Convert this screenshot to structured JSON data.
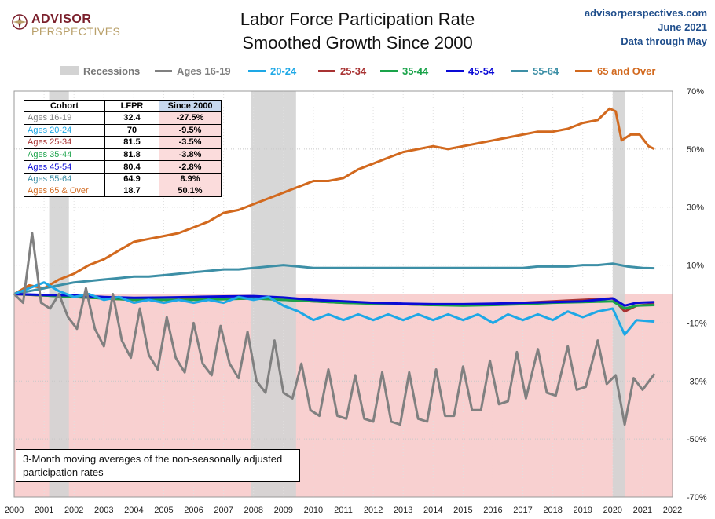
{
  "branding": {
    "logo_line1": "ADVISOR",
    "logo_line2": "PERSPECTIVES"
  },
  "header": {
    "title_line1": "Labor Force Participation Rate",
    "title_line2": "Smoothed Growth Since 2000",
    "site": "advisorperspectives.com",
    "date": "June 2021",
    "data_through": "Data through May"
  },
  "legend": [
    {
      "label": "Recessions",
      "color": "#d3d3d3",
      "kind": "band"
    },
    {
      "label": "Ages 16-19",
      "color": "#808080",
      "kind": "line"
    },
    {
      "label": "20-24",
      "color": "#1ea8e6",
      "kind": "line"
    },
    {
      "label": "25-34",
      "color": "#a83232",
      "kind": "line"
    },
    {
      "label": "35-44",
      "color": "#1aa34a",
      "kind": "line"
    },
    {
      "label": "45-54",
      "color": "#0a0ad6",
      "kind": "line"
    },
    {
      "label": "55-64",
      "color": "#3d8fa6",
      "kind": "line"
    },
    {
      "label": "65 and Over",
      "color": "#d2691e",
      "kind": "line"
    }
  ],
  "table": {
    "headers": [
      "Cohort",
      "LFPR",
      "Since 2000"
    ],
    "rows": [
      {
        "cohort": "Ages 16-19",
        "lfpr": "32.4",
        "since": "-27.5%",
        "color": "#808080"
      },
      {
        "cohort": "Ages 20-24",
        "lfpr": "70",
        "since": "-9.5%",
        "color": "#1ea8e6"
      },
      {
        "cohort": "Ages 25-34",
        "lfpr": "81.5",
        "since": "-3.5%",
        "color": "#a83232"
      },
      {
        "cohort": "Ages 35-44",
        "lfpr": "81.8",
        "since": "-3.8%",
        "color": "#1aa34a"
      },
      {
        "cohort": "Ages 45-54",
        "lfpr": "80.4",
        "since": "-2.8%",
        "color": "#0a0ad6"
      },
      {
        "cohort": "Ages 55-64",
        "lfpr": "64.9",
        "since": "8.9%",
        "color": "#3d8fa6"
      },
      {
        "cohort": "Ages 65 & Over",
        "lfpr": "18.7",
        "since": "50.1%",
        "color": "#d2691e"
      }
    ]
  },
  "note": "3-Month moving averages of the non-seasonally adjusted participation rates",
  "chart_data": {
    "type": "line",
    "x_range": [
      2000,
      2022
    ],
    "y_range": [
      -70,
      70
    ],
    "x_ticks": [
      "2000",
      "2001",
      "2002",
      "2003",
      "2004",
      "2005",
      "2006",
      "2007",
      "2008",
      "2009",
      "2010",
      "2011",
      "2012",
      "2013",
      "2014",
      "2015",
      "2016",
      "2017",
      "2018",
      "2019",
      "2020",
      "2021",
      "2022"
    ],
    "y_ticks": [
      "70%",
      "50%",
      "30%",
      "10%",
      "-10%",
      "-30%",
      "-50%",
      "-70%"
    ],
    "y_tick_values": [
      70,
      50,
      30,
      10,
      -10,
      -30,
      -50,
      -70
    ],
    "negative_region_shaded": true,
    "negative_region_color": "#f8d0d0",
    "recessions": [
      [
        2001.17,
        2001.83
      ],
      [
        2007.92,
        2009.42
      ],
      [
        2020.0,
        2020.42
      ]
    ],
    "recession_color": "#d3d3d3",
    "series": [
      {
        "name": "65 and Over",
        "color": "#d2691e",
        "x": [
          2000,
          2000.5,
          2001,
          2001.5,
          2002,
          2002.5,
          2003,
          2003.5,
          2004,
          2004.5,
          2005,
          2005.5,
          2006,
          2006.5,
          2007,
          2007.5,
          2008,
          2008.5,
          2009,
          2009.5,
          2010,
          2010.5,
          2011,
          2011.5,
          2012,
          2012.5,
          2013,
          2013.5,
          2014,
          2014.5,
          2015,
          2015.5,
          2016,
          2016.5,
          2017,
          2017.5,
          2018,
          2018.5,
          2019,
          2019.5,
          2019.9,
          2020.1,
          2020.3,
          2020.6,
          2020.9,
          2021.2,
          2021.4
        ],
        "y": [
          0,
          3,
          2,
          5,
          7,
          10,
          12,
          15,
          18,
          19,
          20,
          21,
          23,
          25,
          28,
          29,
          31,
          33,
          35,
          37,
          39,
          39,
          40,
          43,
          45,
          47,
          49,
          50,
          51,
          50,
          51,
          52,
          53,
          54,
          55,
          56,
          56,
          57,
          59,
          60,
          64,
          63,
          53,
          55,
          55,
          51,
          50
        ]
      },
      {
        "name": "55-64",
        "color": "#3d8fa6",
        "x": [
          2000,
          2000.5,
          2001,
          2001.5,
          2002,
          2002.5,
          2003,
          2003.5,
          2004,
          2004.5,
          2005,
          2005.5,
          2006,
          2006.5,
          2007,
          2007.5,
          2008,
          2008.5,
          2009,
          2009.5,
          2010,
          2010.5,
          2011,
          2011.5,
          2012,
          2012.5,
          2013,
          2013.5,
          2014,
          2014.5,
          2015,
          2015.5,
          2016,
          2016.5,
          2017,
          2017.5,
          2018,
          2018.5,
          2019,
          2019.5,
          2020,
          2020.5,
          2021,
          2021.4
        ],
        "y": [
          0,
          1,
          2,
          3,
          4,
          4.5,
          5,
          5.5,
          6,
          6,
          6.5,
          7,
          7.5,
          8,
          8.5,
          8.5,
          9,
          9.5,
          10,
          9.5,
          9,
          9,
          9,
          9,
          9,
          9,
          9,
          9,
          9,
          9,
          9,
          9,
          9,
          9,
          9,
          9.5,
          9.5,
          9.5,
          10,
          10,
          10.5,
          9.5,
          9,
          8.9
        ]
      },
      {
        "name": "25-34",
        "color": "#a83232",
        "x": [
          2000,
          2001,
          2002,
          2003,
          2004,
          2005,
          2006,
          2007,
          2008,
          2009,
          2010,
          2011,
          2012,
          2013,
          2014,
          2015,
          2016,
          2017,
          2018,
          2019,
          2020,
          2020.4,
          2020.8,
          2021.4
        ],
        "y": [
          0,
          -0.5,
          -1,
          -1.5,
          -2,
          -2,
          -1.8,
          -1.7,
          -1.5,
          -2,
          -2.5,
          -3,
          -3.2,
          -3.5,
          -3.8,
          -3.8,
          -3.5,
          -3,
          -2.5,
          -2,
          -1.5,
          -6,
          -4,
          -3.5
        ]
      },
      {
        "name": "35-44",
        "color": "#1aa34a",
        "x": [
          2000,
          2001,
          2002,
          2003,
          2004,
          2005,
          2006,
          2007,
          2008,
          2009,
          2010,
          2011,
          2012,
          2013,
          2014,
          2015,
          2016,
          2017,
          2018,
          2019,
          2020,
          2020.4,
          2020.8,
          2021.4
        ],
        "y": [
          0,
          -0.5,
          -1,
          -1.5,
          -2,
          -2,
          -2,
          -1.8,
          -1.5,
          -2,
          -2.5,
          -3,
          -3.3,
          -3.5,
          -3.8,
          -4,
          -3.8,
          -3.5,
          -3,
          -2.8,
          -2.5,
          -5,
          -4,
          -3.8
        ]
      },
      {
        "name": "45-54",
        "color": "#0a0ad6",
        "x": [
          2000,
          2001,
          2002,
          2003,
          2004,
          2005,
          2006,
          2007,
          2008,
          2009,
          2010,
          2011,
          2012,
          2013,
          2014,
          2015,
          2016,
          2017,
          2018,
          2019,
          2020,
          2020.4,
          2020.8,
          2021.4
        ],
        "y": [
          0,
          -0.3,
          -0.5,
          -1,
          -1.3,
          -1.2,
          -1,
          -0.8,
          -0.7,
          -1.2,
          -2,
          -2.5,
          -3,
          -3.3,
          -3.5,
          -3.5,
          -3.3,
          -3,
          -2.8,
          -2.5,
          -1.5,
          -4,
          -3,
          -2.8
        ]
      },
      {
        "name": "20-24",
        "color": "#1ea8e6",
        "x": [
          2000,
          2000.5,
          2001,
          2001.5,
          2002,
          2002.5,
          2003,
          2003.5,
          2004,
          2004.5,
          2005,
          2005.5,
          2006,
          2006.5,
          2007,
          2007.5,
          2008,
          2008.5,
          2009,
          2009.5,
          2010,
          2010.5,
          2011,
          2011.5,
          2012,
          2012.5,
          2013,
          2013.5,
          2014,
          2014.5,
          2015,
          2015.5,
          2016,
          2016.5,
          2017,
          2017.5,
          2018,
          2018.5,
          2019,
          2019.5,
          2020,
          2020.4,
          2020.8,
          2021.4
        ],
        "y": [
          0,
          2,
          4,
          1,
          -1,
          0,
          -2,
          -1,
          -3,
          -2,
          -3,
          -2,
          -3,
          -2,
          -3,
          -1,
          -2,
          -1,
          -4,
          -6,
          -9,
          -7,
          -9,
          -7,
          -9,
          -7,
          -9,
          -7,
          -9,
          -7,
          -9,
          -7,
          -10,
          -7,
          -9,
          -7,
          -9,
          -6,
          -8,
          -6,
          -5,
          -14,
          -9,
          -9.5
        ]
      },
      {
        "name": "Ages 16-19",
        "color": "#808080",
        "x": [
          2000,
          2000.3,
          2000.6,
          2000.9,
          2001.2,
          2001.5,
          2001.8,
          2002.1,
          2002.4,
          2002.7,
          2003.0,
          2003.3,
          2003.6,
          2003.9,
          2004.2,
          2004.5,
          2004.8,
          2005.1,
          2005.4,
          2005.7,
          2006.0,
          2006.3,
          2006.6,
          2006.9,
          2007.2,
          2007.5,
          2007.8,
          2008.1,
          2008.4,
          2008.7,
          2009.0,
          2009.3,
          2009.6,
          2009.9,
          2010.2,
          2010.5,
          2010.8,
          2011.1,
          2011.4,
          2011.7,
          2012.0,
          2012.3,
          2012.6,
          2012.9,
          2013.2,
          2013.5,
          2013.8,
          2014.1,
          2014.4,
          2014.7,
          2015.0,
          2015.3,
          2015.6,
          2015.9,
          2016.2,
          2016.5,
          2016.8,
          2017.1,
          2017.5,
          2017.8,
          2018.1,
          2018.5,
          2018.8,
          2019.1,
          2019.5,
          2019.8,
          2020.1,
          2020.4,
          2020.7,
          2021.0,
          2021.4
        ],
        "y": [
          0,
          -3,
          21,
          -3,
          -5,
          0,
          -8,
          -12,
          2,
          -12,
          -18,
          0,
          -16,
          -22,
          -5,
          -21,
          -26,
          -8,
          -22,
          -27,
          -10,
          -24,
          -28,
          -11,
          -24,
          -29,
          -13,
          -30,
          -34,
          -16,
          -34,
          -36,
          -24,
          -40,
          -42,
          -26,
          -42,
          -43,
          -28,
          -43,
          -44,
          -27,
          -44,
          -45,
          -27,
          -43,
          -44,
          -26,
          -42,
          -42,
          -25,
          -40,
          -40,
          -23,
          -38,
          -37,
          -20,
          -36,
          -19,
          -34,
          -35,
          -18,
          -33,
          -32,
          -16,
          -31,
          -28,
          -45,
          -29,
          -33,
          -27.5
        ]
      }
    ]
  }
}
